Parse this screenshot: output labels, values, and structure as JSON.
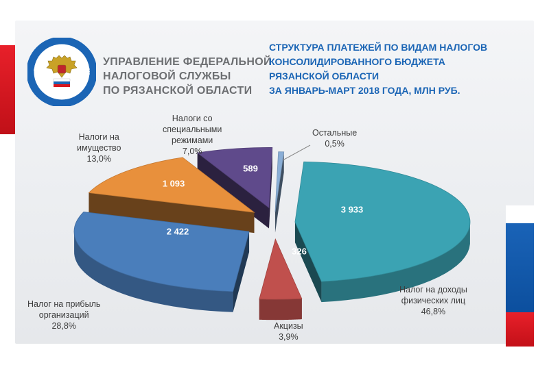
{
  "header": {
    "organization": [
      "Управление федеральной",
      "налоговой службы",
      "по Рязанской области"
    ],
    "emblem_text": "ФЕДЕРАЛЬНАЯ НАЛОГОВАЯ СЛУЖБА"
  },
  "chart_data": {
    "type": "pie",
    "title_lines": [
      "СТРУКТУРА ПЛАТЕЖЕЙ ПО ВИДАМ НАЛОГОВ",
      "КОНСОЛИДИРОВАННОГО БЮДЖЕТА",
      "РЯЗАНСКОЙ ОБЛАСТИ",
      "ЗА ЯНВАРЬ-МАРТ 2018 ГОДА, МЛН РУБ."
    ],
    "style": "3d-exploded",
    "slices": [
      {
        "name_lines": [
          "Налог на доходы",
          "физических лиц"
        ],
        "value": 3933,
        "value_label": "3 933",
        "percent": "46,8%",
        "color": "#3ba3b3"
      },
      {
        "name_lines": [
          "Акцизы"
        ],
        "value": 326,
        "value_label": "326",
        "percent": "3,9%",
        "color": "#c0504d"
      },
      {
        "name_lines": [
          "Налог на прибыль",
          "организаций"
        ],
        "value": 2422,
        "value_label": "2 422",
        "percent": "28,8%",
        "color": "#4a7ebb"
      },
      {
        "name_lines": [
          "Налоги на",
          "имущество"
        ],
        "value": 1093,
        "value_label": "1 093",
        "percent": "13,0%",
        "color": "#e8903c"
      },
      {
        "name_lines": [
          "Налоги со",
          "специальными",
          "режимами"
        ],
        "value": 589,
        "value_label": "589",
        "percent": "7,0%",
        "color": "#5f4a8b"
      },
      {
        "name_lines": [
          "Остальные"
        ],
        "value": 42,
        "value_label": "",
        "percent": "0,5%",
        "color": "#8aaed6"
      }
    ]
  },
  "colors": {
    "brand_blue": "#1b65b5",
    "brand_red": "#d7171f",
    "org_grey": "#6d6f72"
  }
}
